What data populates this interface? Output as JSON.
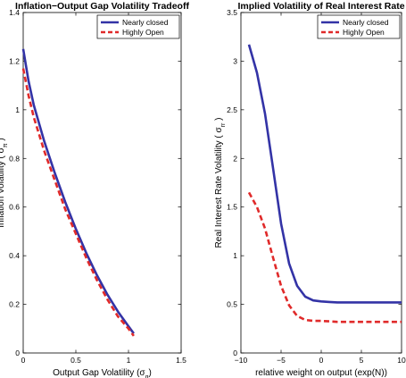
{
  "chart_data": [
    {
      "type": "line",
      "title": "Inflation−Output Gap Volatility Tradeoff",
      "xlabel": "Output Gap Volatility",
      "xlabel_sub": "g",
      "ylabel": "Inflation Volatility",
      "ylabel_sub": "π",
      "xlim": [
        0,
        1.5
      ],
      "ylim": [
        0,
        1.4
      ],
      "xticks": [
        "0",
        "0.5",
        "1",
        "1.5"
      ],
      "yticks": [
        "0",
        "0.2",
        "0.4",
        "0.6",
        "0.8",
        "1",
        "1.2",
        "1.4"
      ],
      "xtick_values": [
        0,
        0.5,
        1,
        1.5
      ],
      "ytick_values": [
        0,
        0.2,
        0.4,
        0.6,
        0.8,
        1,
        1.2,
        1.4
      ],
      "legend_position": "top-right",
      "grid": false,
      "series": [
        {
          "name": "Nearly closed",
          "color": "#3333a6",
          "style": "solid",
          "x": [
            0.0,
            0.05,
            0.1,
            0.2,
            0.3,
            0.4,
            0.5,
            0.6,
            0.7,
            0.8,
            0.9,
            1.0,
            1.05
          ],
          "y": [
            1.25,
            1.12,
            1.02,
            0.87,
            0.74,
            0.62,
            0.51,
            0.41,
            0.32,
            0.24,
            0.17,
            0.11,
            0.08
          ]
        },
        {
          "name": "Highly Open",
          "color": "#e02a2a",
          "style": "dashed",
          "x": [
            0.0,
            0.05,
            0.1,
            0.2,
            0.3,
            0.4,
            0.5,
            0.6,
            0.7,
            0.8,
            0.9,
            1.0,
            1.05
          ],
          "y": [
            1.17,
            1.06,
            0.97,
            0.83,
            0.71,
            0.59,
            0.49,
            0.39,
            0.3,
            0.22,
            0.15,
            0.1,
            0.07
          ]
        }
      ]
    },
    {
      "type": "line",
      "title": "Implied Volatility of Real Interest Rate",
      "xlabel": "relative weight on output (exp(N))",
      "ylabel": "Real Interest Rate Volatility",
      "ylabel_sub": "rr",
      "xlim": [
        -10,
        10
      ],
      "ylim": [
        0,
        3.5
      ],
      "xticks": [
        "−10",
        "−5",
        "0",
        "5",
        "10"
      ],
      "yticks": [
        "0",
        "0.5",
        "1",
        "1.5",
        "2",
        "2.5",
        "3",
        "3.5"
      ],
      "xtick_values": [
        -10,
        -5,
        0,
        5,
        10
      ],
      "ytick_values": [
        0,
        0.5,
        1,
        1.5,
        2,
        2.5,
        3,
        3.5
      ],
      "legend_position": "top-right",
      "grid": false,
      "series": [
        {
          "name": "Nearly closed",
          "color": "#3333a6",
          "style": "solid",
          "x": [
            -9,
            -8,
            -7,
            -6,
            -5,
            -4,
            -3,
            -2,
            -1,
            0,
            1,
            2,
            3,
            4,
            5,
            6,
            7,
            8,
            9,
            10
          ],
          "y": [
            3.17,
            2.88,
            2.46,
            1.9,
            1.33,
            0.92,
            0.69,
            0.58,
            0.54,
            0.53,
            0.525,
            0.52,
            0.52,
            0.52,
            0.52,
            0.52,
            0.52,
            0.52,
            0.52,
            0.52
          ]
        },
        {
          "name": "Highly Open",
          "color": "#e02a2a",
          "style": "dashed",
          "x": [
            -9,
            -8,
            -7,
            -6,
            -5,
            -4,
            -3,
            -2,
            -1,
            0,
            1,
            2,
            3,
            4,
            5,
            6,
            7,
            8,
            9,
            10
          ],
          "y": [
            1.65,
            1.5,
            1.28,
            0.98,
            0.69,
            0.49,
            0.38,
            0.34,
            0.33,
            0.33,
            0.325,
            0.32,
            0.32,
            0.32,
            0.32,
            0.32,
            0.32,
            0.32,
            0.32,
            0.32
          ]
        }
      ]
    }
  ]
}
